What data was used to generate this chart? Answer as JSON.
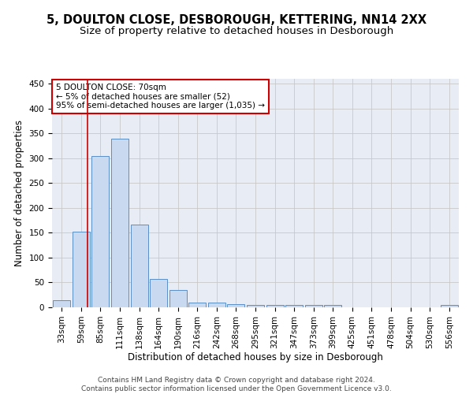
{
  "title": "5, DOULTON CLOSE, DESBOROUGH, KETTERING, NN14 2XX",
  "subtitle": "Size of property relative to detached houses in Desborough",
  "xlabel": "Distribution of detached houses by size in Desborough",
  "ylabel": "Number of detached properties",
  "categories": [
    "33sqm",
    "59sqm",
    "85sqm",
    "111sqm",
    "138sqm",
    "164sqm",
    "190sqm",
    "216sqm",
    "242sqm",
    "268sqm",
    "295sqm",
    "321sqm",
    "347sqm",
    "373sqm",
    "399sqm",
    "425sqm",
    "451sqm",
    "478sqm",
    "504sqm",
    "530sqm",
    "556sqm"
  ],
  "values": [
    15,
    153,
    305,
    340,
    167,
    57,
    35,
    10,
    9,
    6,
    5,
    4,
    5,
    5,
    5,
    0,
    0,
    0,
    0,
    0,
    5
  ],
  "bar_color": "#c9d9f0",
  "bar_edge_color": "#5b8fc9",
  "red_line_x": 1.35,
  "annotation_line1": "5 DOULTON CLOSE: 70sqm",
  "annotation_line2": "← 5% of detached houses are smaller (52)",
  "annotation_line3": "95% of semi-detached houses are larger (1,035) →",
  "annotation_box_color": "#ffffff",
  "annotation_box_edge_color": "#cc0000",
  "annotation_text_color": "#000000",
  "red_line_color": "#cc0000",
  "ylim": [
    0,
    460
  ],
  "yticks": [
    0,
    50,
    100,
    150,
    200,
    250,
    300,
    350,
    400,
    450
  ],
  "grid_color": "#c8c8c8",
  "bg_color": "#e8edf5",
  "footer": "Contains HM Land Registry data © Crown copyright and database right 2024.\nContains public sector information licensed under the Open Government Licence v3.0.",
  "title_fontsize": 10.5,
  "subtitle_fontsize": 9.5,
  "ylabel_fontsize": 8.5,
  "xlabel_fontsize": 8.5,
  "tick_fontsize": 7.5,
  "annot_fontsize": 7.5,
  "footer_fontsize": 6.5
}
